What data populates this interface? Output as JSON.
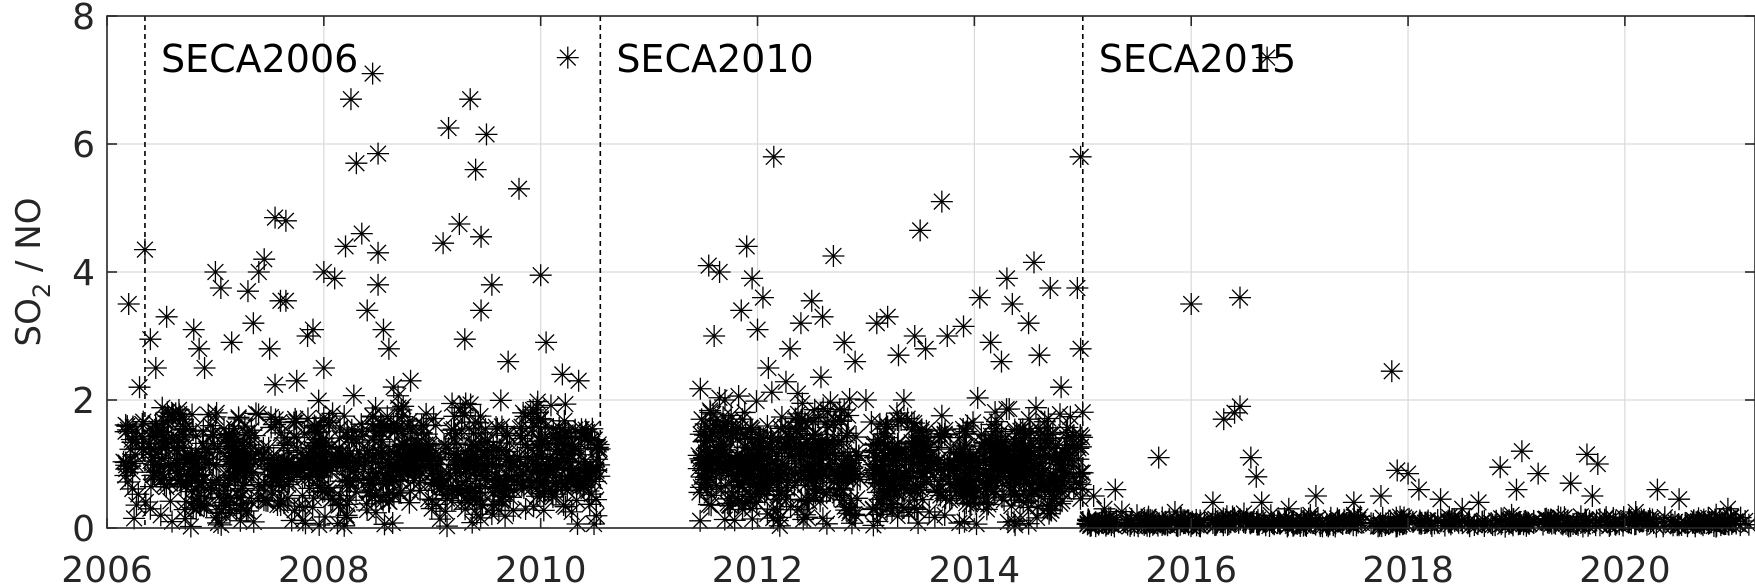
{
  "chart_data": {
    "type": "scatter",
    "title": "",
    "xlabel": "",
    "ylabel": "SO2 / NO",
    "ylabel_base": "SO",
    "ylabel_sub": "2",
    "ylabel_rest": " / NO",
    "xlim": [
      2006,
      2021.2
    ],
    "ylim": [
      0,
      8
    ],
    "xticks": [
      2006,
      2008,
      2010,
      2012,
      2014,
      2016,
      2018,
      2020
    ],
    "yticks": [
      0,
      2,
      4,
      6,
      8
    ],
    "xtick_labels": [
      "2006",
      "2008",
      "2010",
      "2012",
      "2014",
      "2016",
      "2018",
      "2020"
    ],
    "ytick_labels": [
      "0",
      "2",
      "4",
      "6",
      "8"
    ],
    "grid": true,
    "marker": "asterisk",
    "marker_color": "#000000",
    "regulation_boundaries": [
      {
        "x": 2006.35,
        "label": "SECA2006"
      },
      {
        "x": 2010.55,
        "label": "SECA2010"
      },
      {
        "x": 2015.0,
        "label": "SECA2015"
      }
    ],
    "points": [
      [
        2006.35,
        4.35
      ],
      [
        2006.55,
        3.3
      ],
      [
        2006.4,
        2.95
      ],
      [
        2006.45,
        2.5
      ],
      [
        2006.3,
        2.2
      ],
      [
        2006.2,
        3.5
      ],
      [
        2006.5,
        1.5
      ],
      [
        2006.4,
        0.3
      ],
      [
        2006.6,
        0.1
      ],
      [
        2006.25,
        0.15
      ],
      [
        2006.8,
        3.1
      ],
      [
        2006.85,
        2.8
      ],
      [
        2006.7,
        1.7
      ],
      [
        2006.9,
        2.5
      ],
      [
        2007.0,
        4.0
      ],
      [
        2007.05,
        3.75
      ],
      [
        2007.15,
        2.9
      ],
      [
        2007.3,
        3.7
      ],
      [
        2007.35,
        3.2
      ],
      [
        2007.4,
        4.0
      ],
      [
        2007.45,
        4.2
      ],
      [
        2007.6,
        3.55
      ],
      [
        2007.65,
        3.55
      ],
      [
        2007.55,
        4.85
      ],
      [
        2007.65,
        4.8
      ],
      [
        2007.5,
        2.8
      ],
      [
        2007.75,
        2.3
      ],
      [
        2007.85,
        3.0
      ],
      [
        2007.9,
        3.1
      ],
      [
        2008.0,
        2.5
      ],
      [
        2008.0,
        4.0
      ],
      [
        2008.1,
        3.9
      ],
      [
        2008.2,
        4.4
      ],
      [
        2008.25,
        6.7
      ],
      [
        2008.3,
        5.7
      ],
      [
        2008.35,
        4.6
      ],
      [
        2008.4,
        3.4
      ],
      [
        2008.45,
        7.1
      ],
      [
        2008.5,
        5.85
      ],
      [
        2008.5,
        4.3
      ],
      [
        2008.5,
        3.8
      ],
      [
        2008.55,
        3.1
      ],
      [
        2008.6,
        2.8
      ],
      [
        2008.8,
        2.3
      ],
      [
        2009.1,
        4.45
      ],
      [
        2009.15,
        6.25
      ],
      [
        2009.25,
        4.75
      ],
      [
        2009.35,
        6.7
      ],
      [
        2009.4,
        5.6
      ],
      [
        2009.45,
        4.55
      ],
      [
        2009.5,
        6.15
      ],
      [
        2009.45,
        3.4
      ],
      [
        2009.55,
        3.8
      ],
      [
        2009.3,
        2.95
      ],
      [
        2009.8,
        5.3
      ],
      [
        2009.7,
        2.6
      ],
      [
        2010.0,
        3.95
      ],
      [
        2010.05,
        2.9
      ],
      [
        2010.2,
        2.4
      ],
      [
        2010.25,
        7.35
      ],
      [
        2010.35,
        2.3
      ],
      [
        2011.55,
        4.1
      ],
      [
        2011.6,
        3.0
      ],
      [
        2011.65,
        4.0
      ],
      [
        2011.7,
        2.0
      ],
      [
        2011.85,
        3.4
      ],
      [
        2011.9,
        4.4
      ],
      [
        2011.95,
        3.9
      ],
      [
        2012.0,
        3.1
      ],
      [
        2012.05,
        3.6
      ],
      [
        2012.1,
        2.5
      ],
      [
        2012.15,
        5.8
      ],
      [
        2012.3,
        2.8
      ],
      [
        2012.4,
        3.2
      ],
      [
        2012.5,
        3.55
      ],
      [
        2012.6,
        3.3
      ],
      [
        2012.7,
        4.25
      ],
      [
        2012.8,
        2.9
      ],
      [
        2012.9,
        2.6
      ],
      [
        2013.0,
        2.0
      ],
      [
        2013.1,
        3.2
      ],
      [
        2013.2,
        3.3
      ],
      [
        2013.3,
        2.7
      ],
      [
        2013.35,
        2.0
      ],
      [
        2013.45,
        3.0
      ],
      [
        2013.5,
        4.65
      ],
      [
        2013.55,
        2.8
      ],
      [
        2013.7,
        5.1
      ],
      [
        2013.75,
        3.0
      ],
      [
        2013.9,
        3.15
      ],
      [
        2014.05,
        3.6
      ],
      [
        2014.15,
        2.9
      ],
      [
        2014.25,
        2.6
      ],
      [
        2014.3,
        3.9
      ],
      [
        2014.35,
        3.5
      ],
      [
        2014.5,
        3.2
      ],
      [
        2014.55,
        4.15
      ],
      [
        2014.6,
        2.7
      ],
      [
        2014.7,
        3.75
      ],
      [
        2014.8,
        2.2
      ],
      [
        2014.95,
        3.75
      ],
      [
        2014.98,
        5.8
      ],
      [
        2014.98,
        2.8
      ],
      [
        2015.1,
        0.5
      ],
      [
        2015.2,
        0.3
      ],
      [
        2015.3,
        0.6
      ],
      [
        2015.5,
        0.2
      ],
      [
        2015.7,
        1.1
      ],
      [
        2015.85,
        0.25
      ],
      [
        2015.95,
        0.1
      ],
      [
        2016.0,
        3.5
      ],
      [
        2016.2,
        0.4
      ],
      [
        2016.3,
        1.7
      ],
      [
        2016.4,
        1.8
      ],
      [
        2016.45,
        1.9
      ],
      [
        2016.45,
        3.6
      ],
      [
        2016.55,
        1.1
      ],
      [
        2016.6,
        0.8
      ],
      [
        2016.7,
        7.35
      ],
      [
        2016.65,
        0.4
      ],
      [
        2016.9,
        0.3
      ],
      [
        2017.15,
        0.5
      ],
      [
        2017.5,
        0.4
      ],
      [
        2017.75,
        0.5
      ],
      [
        2017.85,
        2.45
      ],
      [
        2017.9,
        0.9
      ],
      [
        2018.0,
        0.85
      ],
      [
        2018.1,
        0.6
      ],
      [
        2018.3,
        0.45
      ],
      [
        2018.5,
        0.3
      ],
      [
        2018.65,
        0.4
      ],
      [
        2018.85,
        0.95
      ],
      [
        2019.0,
        0.6
      ],
      [
        2019.05,
        1.2
      ],
      [
        2019.2,
        0.85
      ],
      [
        2019.5,
        0.7
      ],
      [
        2019.65,
        1.15
      ],
      [
        2019.75,
        1.0
      ],
      [
        2019.7,
        0.5
      ],
      [
        2020.1,
        0.25
      ],
      [
        2020.3,
        0.6
      ],
      [
        2020.5,
        0.45
      ],
      [
        2020.95,
        0.3
      ]
    ],
    "dense_segments": [
      {
        "x_start": 2006.15,
        "x_end": 2006.65,
        "y_mean": 1.1,
        "y_spread": 0.9,
        "count": 90
      },
      {
        "x_start": 2006.65,
        "x_end": 2010.55,
        "y_mean": 1.0,
        "y_spread": 0.85,
        "count": 900
      },
      {
        "x_start": 2011.45,
        "x_end": 2012.95,
        "y_mean": 1.05,
        "y_spread": 0.9,
        "count": 420
      },
      {
        "x_start": 2013.05,
        "x_end": 2015.0,
        "y_mean": 0.95,
        "y_spread": 0.8,
        "count": 520
      },
      {
        "x_start": 2015.0,
        "x_end": 2021.2,
        "y_mean": 0.08,
        "y_spread": 0.12,
        "count": 420
      }
    ]
  }
}
